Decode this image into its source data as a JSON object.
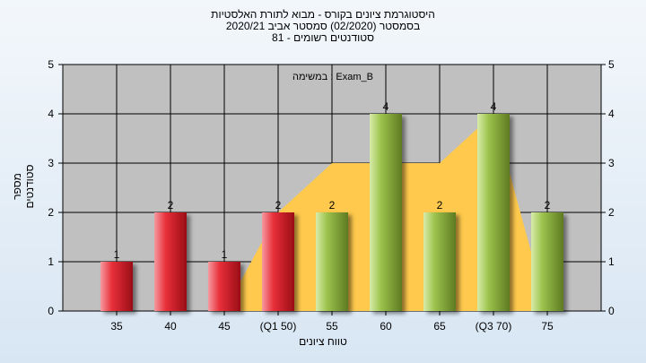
{
  "header": {
    "line1": "היסטוגרמת ציונים בקורס - מבוא לתורת האלסטיות",
    "line2": "בסמסטר  (02/2020)  סמסטר אביב 2020/21",
    "line3": "סטודנטים רשומים - 81"
  },
  "chart_data": {
    "type": "bar",
    "title": "",
    "xlabel": "טווח ציונים",
    "ylabel": "מספר סטודנטים",
    "annotation": "במשימה : Exam_B",
    "ylim": [
      0,
      5
    ],
    "yticks": [
      0,
      1,
      2,
      3,
      4,
      5
    ],
    "categories": [
      "35",
      "40",
      "45",
      "(Q1 50)",
      "55",
      "60",
      "65",
      "(Q3 70)",
      "75"
    ],
    "values": [
      1,
      2,
      1,
      2,
      2,
      4,
      2,
      4,
      2
    ],
    "bar_colors": [
      "red",
      "red",
      "red",
      "red",
      "green",
      "green",
      "green",
      "green",
      "green"
    ],
    "box_area": [
      0,
      0,
      0,
      2,
      3,
      3,
      3,
      4,
      0
    ],
    "colors": {
      "plot_bg": "#c0c0c0",
      "red_bar": "#e8303a",
      "green_bar": "#9cc24c",
      "box_fill": "#ffc94d"
    }
  }
}
